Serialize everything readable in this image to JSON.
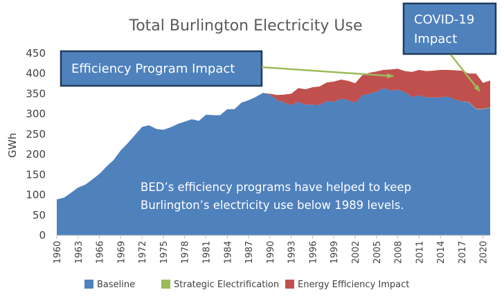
{
  "chart_data": {
    "type": "area",
    "title": "Total Burlington Electricity Use",
    "ylabel": "GWh",
    "xlabel": "",
    "ylim": [
      0,
      450
    ],
    "yticks": [
      0,
      50,
      100,
      150,
      200,
      250,
      300,
      350,
      400,
      450
    ],
    "xlim": [
      1960,
      2021
    ],
    "xticks": [
      1960,
      1963,
      1966,
      1969,
      1972,
      1975,
      1978,
      1981,
      1984,
      1987,
      1990,
      1993,
      1996,
      1999,
      2002,
      2005,
      2008,
      2011,
      2014,
      2017,
      2020
    ],
    "x": [
      1960,
      1961,
      1962,
      1963,
      1964,
      1965,
      1966,
      1967,
      1968,
      1969,
      1970,
      1971,
      1972,
      1973,
      1974,
      1975,
      1976,
      1977,
      1978,
      1979,
      1980,
      1981,
      1982,
      1983,
      1984,
      1985,
      1986,
      1987,
      1988,
      1989,
      1990,
      1991,
      1992,
      1993,
      1994,
      1995,
      1996,
      1997,
      1998,
      1999,
      2000,
      2001,
      2002,
      2003,
      2004,
      2005,
      2006,
      2007,
      2008,
      2009,
      2010,
      2011,
      2012,
      2013,
      2014,
      2015,
      2016,
      2017,
      2018,
      2019,
      2020,
      2021
    ],
    "series": [
      {
        "name": "Baseline",
        "color": "#4f81bd",
        "values": [
          89,
          93,
          105,
          118,
          125,
          138,
          152,
          170,
          186,
          210,
          228,
          248,
          268,
          272,
          263,
          261,
          267,
          275,
          281,
          287,
          283,
          298,
          297,
          297,
          312,
          312,
          328,
          334,
          342,
          352,
          348,
          335,
          328,
          322,
          330,
          323,
          323,
          322,
          332,
          330,
          338,
          334,
          328,
          346,
          350,
          355,
          364,
          358,
          360,
          354,
          342,
          346,
          341,
          341,
          341,
          343,
          336,
          331,
          329,
          312,
          312,
          316
        ]
      },
      {
        "name": "Strategic Electrification",
        "color": "#9bbb59",
        "values": [
          0,
          0,
          0,
          0,
          0,
          0,
          0,
          0,
          0,
          0,
          0,
          0,
          0,
          0,
          0,
          0,
          0,
          0,
          0,
          0,
          0,
          0,
          0,
          0,
          0,
          0,
          0,
          0,
          0,
          0,
          0,
          0,
          0,
          0,
          0,
          0,
          0,
          0,
          0,
          0,
          0,
          0,
          0,
          0,
          0,
          0,
          0,
          0,
          0,
          0,
          0,
          0,
          0,
          0,
          0,
          0,
          0,
          0,
          1,
          1,
          1,
          1
        ]
      },
      {
        "name": "Energy Efficiency Impact",
        "color": "#c0504d",
        "values": [
          0,
          0,
          0,
          0,
          0,
          0,
          0,
          0,
          0,
          0,
          0,
          0,
          0,
          0,
          0,
          0,
          0,
          0,
          0,
          0,
          0,
          0,
          0,
          0,
          0,
          0,
          0,
          0,
          0,
          0,
          2,
          12,
          20,
          28,
          34,
          38,
          43,
          46,
          46,
          50,
          47,
          48,
          48,
          50,
          52,
          50,
          45,
          52,
          52,
          52,
          62,
          63,
          65,
          66,
          68,
          66,
          72,
          76,
          70,
          87,
          64,
          66
        ]
      }
    ],
    "legend_position": "bottom",
    "grid": false
  },
  "annotations": {
    "body_text_line1": "BED’s efficiency programs have helped to keep",
    "body_text_line2": "Burlington’s electricity use below 1989 levels.",
    "efficiency_callout": "Efficiency Program Impact",
    "covid_callout_line1": "COVID-19",
    "covid_callout_line2": "Impact"
  },
  "colors": {
    "callout_fill": "#4f81bd",
    "callout_border": "#1f3c5c",
    "arrow": "#9bbb59"
  }
}
